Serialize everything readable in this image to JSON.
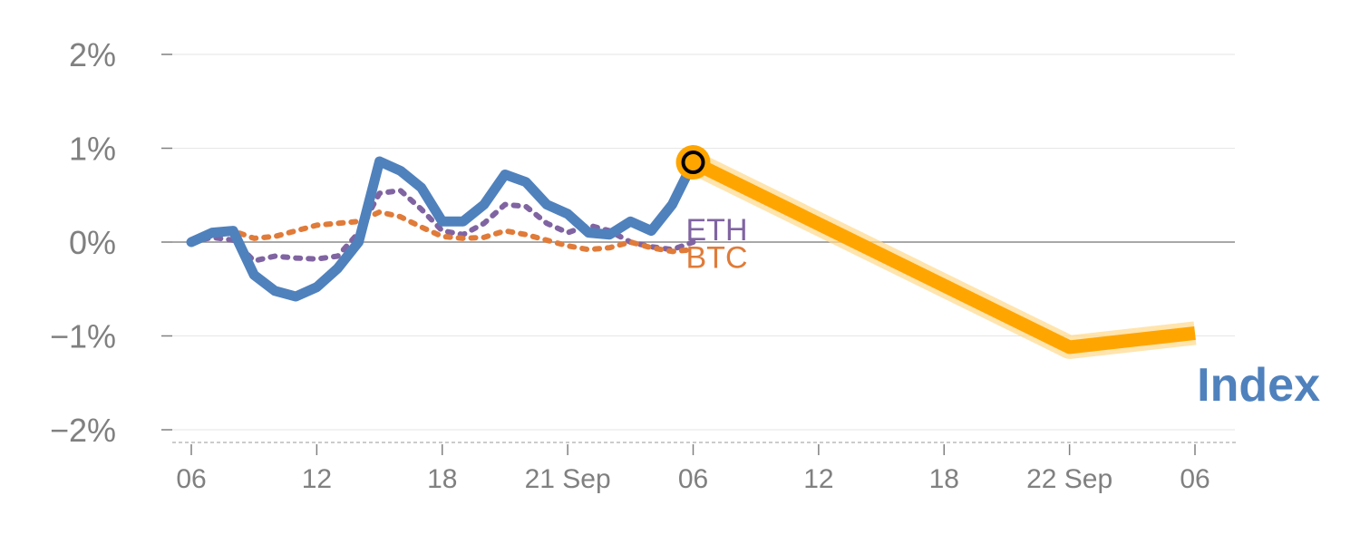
{
  "chart_data": {
    "type": "line",
    "title": "",
    "xlabel": "",
    "ylabel": "",
    "ylim": [
      -2,
      2
    ],
    "y_ticks": [
      {
        "value": 2,
        "label": "2%"
      },
      {
        "value": 1,
        "label": "1%"
      },
      {
        "value": 0,
        "label": "0%"
      },
      {
        "value": -1,
        "label": "−1%"
      },
      {
        "value": -2,
        "label": "−2%"
      }
    ],
    "x_range": [
      0,
      48
    ],
    "x_ticks": [
      {
        "x": 0,
        "label": "06"
      },
      {
        "x": 6,
        "label": "12"
      },
      {
        "x": 12,
        "label": "18"
      },
      {
        "x": 18,
        "label": "21 Sep"
      },
      {
        "x": 24,
        "label": "06"
      },
      {
        "x": 30,
        "label": "12"
      },
      {
        "x": 36,
        "label": "18"
      },
      {
        "x": 42,
        "label": "22 Sep"
      },
      {
        "x": 48,
        "label": "06"
      }
    ],
    "grid": true,
    "series": [
      {
        "name": "ETH",
        "color": "#8064a2",
        "style": "dotted",
        "x": [
          0,
          1,
          2,
          3,
          4,
          5,
          6,
          7,
          8,
          9,
          10,
          11,
          12,
          13,
          14,
          15,
          16,
          17,
          18,
          19,
          20,
          21,
          22,
          23,
          24
        ],
        "values": [
          0.0,
          0.05,
          0.02,
          -0.2,
          -0.15,
          -0.17,
          -0.18,
          -0.15,
          0.1,
          0.52,
          0.55,
          0.35,
          0.12,
          0.08,
          0.2,
          0.4,
          0.38,
          0.2,
          0.1,
          0.18,
          0.12,
          0.0,
          -0.05,
          -0.08,
          0.0
        ]
      },
      {
        "name": "BTC",
        "color": "#e07b39",
        "style": "dotted",
        "x": [
          0,
          1,
          2,
          3,
          4,
          5,
          6,
          7,
          8,
          9,
          10,
          11,
          12,
          13,
          14,
          15,
          16,
          17,
          18,
          19,
          20,
          21,
          22,
          23,
          24
        ],
        "values": [
          0.0,
          0.1,
          0.12,
          0.04,
          0.06,
          0.12,
          0.18,
          0.2,
          0.22,
          0.32,
          0.27,
          0.16,
          0.06,
          0.04,
          0.05,
          0.12,
          0.08,
          0.02,
          -0.04,
          -0.08,
          -0.06,
          0.0,
          -0.06,
          -0.1,
          -0.08
        ]
      },
      {
        "name": "Index",
        "color": "#4f81bd",
        "style": "solid",
        "x": [
          0,
          1,
          2,
          3,
          4,
          5,
          6,
          7,
          8,
          9,
          10,
          11,
          12,
          13,
          14,
          15,
          16,
          17,
          18,
          19,
          20,
          21,
          22,
          23,
          24
        ],
        "values": [
          0.0,
          0.1,
          0.12,
          -0.35,
          -0.52,
          -0.58,
          -0.48,
          -0.28,
          0.0,
          0.86,
          0.76,
          0.58,
          0.22,
          0.22,
          0.4,
          0.72,
          0.64,
          0.4,
          0.3,
          0.1,
          0.08,
          0.22,
          0.12,
          0.4,
          0.85
        ]
      },
      {
        "name": "Index",
        "color": "#ffa500",
        "style": "forecast",
        "x": [
          24,
          42,
          48
        ],
        "values": [
          0.85,
          -1.12,
          -0.97
        ]
      }
    ],
    "labels": {
      "eth": "ETH",
      "btc": "BTC",
      "index": "Index"
    },
    "highlight_point": {
      "x": 24,
      "y": 0.85
    }
  }
}
